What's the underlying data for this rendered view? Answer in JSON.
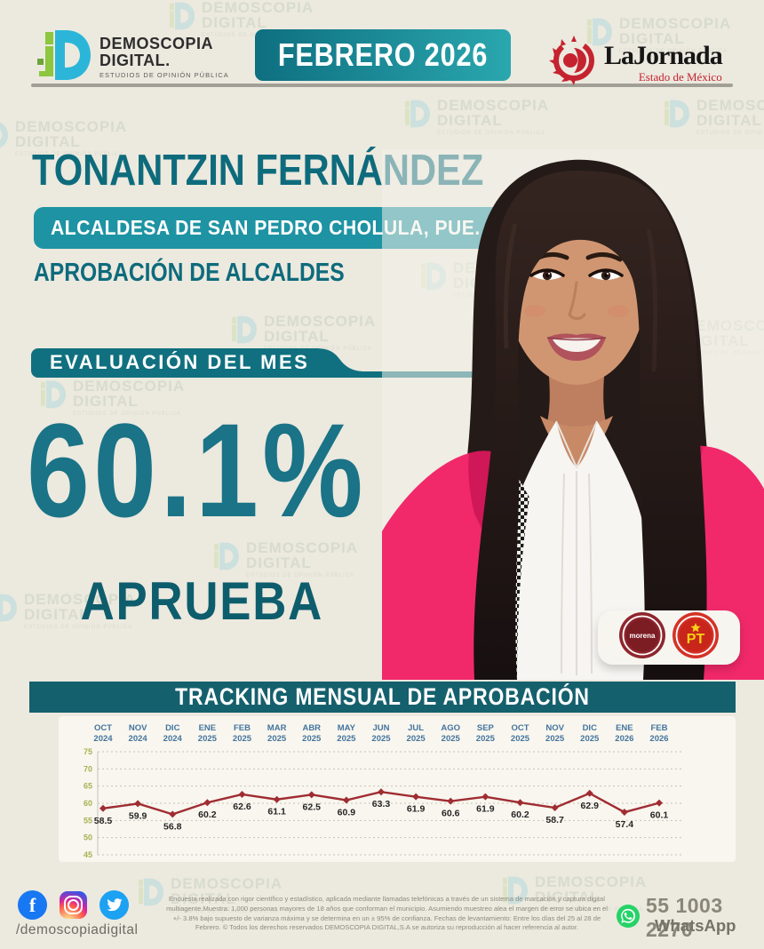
{
  "header": {
    "brand": {
      "line1": "DEMOSCOPIA",
      "line2": "DIGITAL.",
      "tagline": "ESTUDIOS DE OPINIÓN PÚBLICA"
    },
    "date_banner": "FEBRERO 2026",
    "partner": {
      "name": "LaJornada",
      "subtitle": "Estado de México"
    }
  },
  "watermark": {
    "line1": "DEMOSCOPIA",
    "line2": "DIGITAL",
    "line3": "ESTUDIOS DE OPINIÓN PÚBLICA"
  },
  "person": {
    "name": "TONANTZIN FERNÁNDEZ",
    "role": "ALCALDESA DE SAN PEDRO CHOLULA, PUE.",
    "section": "APROBACIÓN DE ALCALDES"
  },
  "evaluation": {
    "label": "EVALUACIÓN DEL MES",
    "value": "60.1%",
    "verdict": "APRUEBA"
  },
  "parties": [
    {
      "name": "morena"
    },
    {
      "name": "PT"
    }
  ],
  "chart_data": {
    "type": "line",
    "title": "TRACKING MENSUAL DE APROBACIÓN",
    "categories": [
      {
        "month": "OCT",
        "year": "2024"
      },
      {
        "month": "NOV",
        "year": "2024"
      },
      {
        "month": "DIC",
        "year": "2024"
      },
      {
        "month": "ENE",
        "year": "2025"
      },
      {
        "month": "FEB",
        "year": "2025"
      },
      {
        "month": "MAR",
        "year": "2025"
      },
      {
        "month": "ABR",
        "year": "2025"
      },
      {
        "month": "MAY",
        "year": "2025"
      },
      {
        "month": "JUN",
        "year": "2025"
      },
      {
        "month": "JUL",
        "year": "2025"
      },
      {
        "month": "AGO",
        "year": "2025"
      },
      {
        "month": "SEP",
        "year": "2025"
      },
      {
        "month": "OCT",
        "year": "2025"
      },
      {
        "month": "NOV",
        "year": "2025"
      },
      {
        "month": "DIC",
        "year": "2025"
      },
      {
        "month": "ENE",
        "year": "2026"
      },
      {
        "month": "FEB",
        "year": "2026"
      }
    ],
    "values": [
      58.5,
      59.9,
      56.8,
      60.2,
      62.6,
      61.1,
      62.5,
      60.9,
      63.3,
      61.9,
      60.6,
      61.9,
      60.2,
      58.7,
      62.9,
      57.4,
      60.1
    ],
    "ylim": [
      45,
      75
    ],
    "yticks": [
      75,
      70,
      65,
      60,
      55,
      50,
      45
    ],
    "grid": true,
    "legend": false,
    "line_color": "#a02c32",
    "month_label_color": "#44749e",
    "ytick_color": "#a5b253",
    "value_label_color": "#262626"
  },
  "footer": {
    "social_handle": "/demoscopiadigital",
    "social_icons": [
      "facebook",
      "instagram",
      "twitter"
    ],
    "disclaimer": "Encuesta realizada con rigor científico y estadístico, aplicada mediante llamadas telefónicas a través de un sistema de marcación y captura digital multiagente.Muestra: 1,000 personas mayores de 18 años que conforman el municipio. Asumiendo muestreo alea el margen de error se ubica en el +/- 3.8% bajo supuesto de varianza máxima y se determina en un ± 95% de confianza. Fechas de levantamiento: Entre los días del 25 al 28 de Febrero. © Todos los derechos reservados DEMOSCOPIA DIGITAL,S.A se autoriza su reproducción al hacer referencia al autor.",
    "whatsapp": {
      "number": "55 1003 2270",
      "label": "WhatsApp"
    }
  },
  "colors": {
    "page_bg": "#ece9df",
    "teal_dark": "#0e6b7c",
    "teal_banner": "#10707f",
    "teal_pill": "#1e93a3",
    "tracking_banner": "#15606d",
    "big_value": "#1a7386",
    "line": "#a02c32",
    "blazer_pink": "#f1296b",
    "morena_red": "#8f262d",
    "pt_red": "#d43227",
    "pt_yellow": "#f7d117",
    "whatsapp_green": "#25d366"
  }
}
